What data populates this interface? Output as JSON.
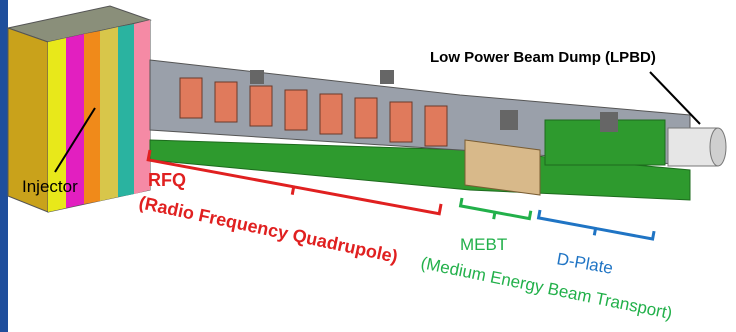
{
  "labels": {
    "lpbd": "Low Power Beam Dump (LPBD)",
    "injector": "Injector",
    "rfq": {
      "acronym": "RFQ",
      "full": "(Radio Frequency Quadrupole)"
    },
    "mebt": {
      "acronym": "MEBT",
      "full": "(Medium Energy Beam Transport)"
    },
    "dplate": "D-Plate"
  }
}
